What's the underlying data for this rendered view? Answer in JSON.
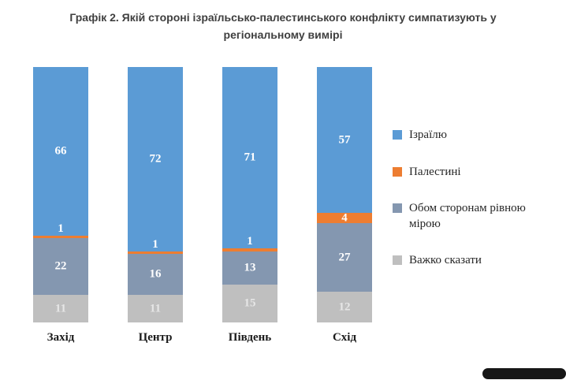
{
  "title": "Графік 2. Якій стороні ізраїльсько-палестинського конфлікту симпатизують у регіональному вимірі",
  "chart_data": {
    "type": "bar",
    "variant": "stacked-column-100",
    "stacked": true,
    "categories": [
      "Захід",
      "Центр",
      "Південь",
      "Схід"
    ],
    "series": [
      {
        "name": "Ізраїлю",
        "color": "#5B9BD5",
        "label_color": "#FFFFFF",
        "values": [
          66,
          72,
          71,
          57
        ]
      },
      {
        "name": "Палестині",
        "color": "#ED7D31",
        "label_color": "#FFFFFF",
        "values": [
          1,
          1,
          1,
          4
        ]
      },
      {
        "name": "Обом сторонам рівною мірою",
        "color": "#8497B0",
        "label_color": "#FFFFFF",
        "values": [
          22,
          16,
          13,
          27
        ]
      },
      {
        "name": "Важко сказати",
        "color": "#BFBFBF",
        "label_color": "#E6E6E6",
        "values": [
          11,
          11,
          15,
          12
        ]
      }
    ],
    "ylim": [
      0,
      100
    ],
    "grid": false,
    "legend_position": "right"
  },
  "scrollbar": {
    "color": "#161616"
  }
}
